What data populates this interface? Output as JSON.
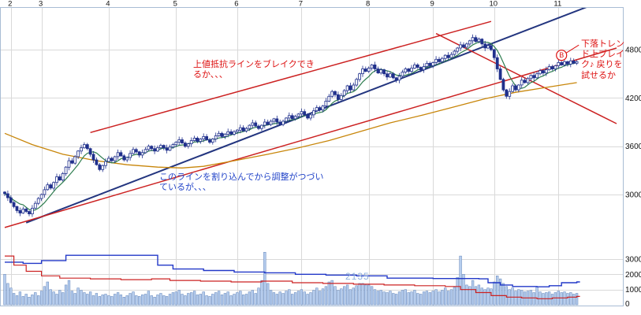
{
  "annotations": {
    "resistance_note": "上値抵抗ラインをブレイクできるか、、、",
    "downtrend_note": "下落トレンド上ブレイク♪ 戻りを試せるか",
    "support_note": "このラインを割り込んでから調整がつづいているが、、、",
    "volume_label": "2135",
    "breakout_marker": "B"
  },
  "colors": {
    "candle": "#20308c",
    "candle_up_fill": "#ffffff",
    "volume_bar_fill": "#b6cdee",
    "volume_bar_stroke": "#5f82b8",
    "grid": "#d9d9d9",
    "border": "#a8bcd4",
    "long_ma": "#c8860a",
    "short_ma": "#2e7d4f",
    "annotation_red": "#dd1111",
    "annotation_blue": "#2143c8",
    "ticker_label": "#8fb0dd",
    "axis_text": "#111111"
  },
  "chart_data": {
    "type": "candlestick",
    "legend": "none",
    "grid": "on",
    "months": [
      {
        "label": "2",
        "day": 2
      },
      {
        "label": "3",
        "day": 12
      },
      {
        "label": "4",
        "day": 34
      },
      {
        "label": "5",
        "day": 56
      },
      {
        "label": "6",
        "day": 76
      },
      {
        "label": "7",
        "day": 97
      },
      {
        "label": "8",
        "day": 119
      },
      {
        "label": "9",
        "day": 140
      },
      {
        "label": "10",
        "day": 160
      },
      {
        "label": "11",
        "day": 181
      }
    ],
    "price_ticks": [
      {
        "value": 4800,
        "label": "4800"
      },
      {
        "value": 4200,
        "label": "4200"
      },
      {
        "value": 3600,
        "label": "3600"
      },
      {
        "value": 3000,
        "label": "3000"
      }
    ],
    "volume_ticks": [
      {
        "value": 300,
        "label": "3000000"
      },
      {
        "value": 200,
        "label": "2000000"
      },
      {
        "value": 100,
        "label": "1000000"
      },
      {
        "value": 0,
        "label": "0"
      }
    ],
    "volume_scale": 10000,
    "closes": [
      3010,
      2960,
      2900,
      2850,
      2800,
      2770,
      2820,
      2790,
      2760,
      2830,
      2890,
      2950,
      3000,
      3060,
      3120,
      3080,
      3150,
      3220,
      3180,
      3260,
      3340,
      3420,
      3390,
      3470,
      3540,
      3580,
      3620,
      3570,
      3500,
      3430,
      3370,
      3310,
      3360,
      3410,
      3450,
      3420,
      3470,
      3520,
      3480,
      3430,
      3460,
      3510,
      3560,
      3530,
      3490,
      3520,
      3560,
      3600,
      3570,
      3540,
      3580,
      3610,
      3580,
      3550,
      3590,
      3620,
      3650,
      3680,
      3640,
      3600,
      3630,
      3670,
      3700,
      3660,
      3690,
      3720,
      3680,
      3650,
      3690,
      3730,
      3760,
      3720,
      3750,
      3780,
      3750,
      3780,
      3800,
      3830,
      3790,
      3820,
      3860,
      3890,
      3850,
      3820,
      3860,
      3900,
      3870,
      3910,
      3940,
      3900,
      3870,
      3910,
      3950,
      3980,
      3940,
      3970,
      4000,
      4030,
      3990,
      3950,
      3990,
      4040,
      4080,
      4050,
      4100,
      4160,
      4220,
      4280,
      4240,
      4180,
      4230,
      4290,
      4350,
      4300,
      4360,
      4430,
      4500,
      4560,
      4530,
      4570,
      4610,
      4560,
      4510,
      4550,
      4500,
      4460,
      4500,
      4450,
      4420,
      4470,
      4520,
      4560,
      4530,
      4570,
      4610,
      4580,
      4550,
      4590,
      4630,
      4600,
      4640,
      4680,
      4650,
      4690,
      4730,
      4700,
      4740,
      4780,
      4820,
      4860,
      4830,
      4870,
      4910,
      4950,
      4900,
      4930,
      4870,
      4820,
      4850,
      4800,
      4700,
      4560,
      4430,
      4300,
      4220,
      4280,
      4350,
      4300,
      4360,
      4420,
      4390,
      4440,
      4480,
      4450,
      4500,
      4540,
      4510,
      4550,
      4590,
      4560,
      4600,
      4640,
      4610,
      4650,
      4620,
      4660,
      4630,
      4650
    ],
    "volumes": [
      200,
      140,
      110,
      75,
      60,
      85,
      55,
      70,
      50,
      65,
      80,
      60,
      90,
      120,
      150,
      100,
      85,
      70,
      95,
      80,
      130,
      160,
      90,
      75,
      110,
      95,
      80,
      70,
      85,
      60,
      75,
      55,
      65,
      70,
      60,
      55,
      70,
      80,
      65,
      50,
      60,
      75,
      85,
      60,
      55,
      65,
      70,
      90,
      60,
      50,
      65,
      75,
      60,
      55,
      70,
      80,
      85,
      95,
      70,
      60,
      75,
      80,
      90,
      65,
      70,
      85,
      60,
      55,
      70,
      80,
      90,
      65,
      75,
      85,
      60,
      70,
      80,
      90,
      65,
      70,
      85,
      95,
      75,
      110,
      160,
      345,
      140,
      95,
      80,
      70,
      85,
      75,
      90,
      100,
      70,
      80,
      90,
      100,
      85,
      70,
      80,
      95,
      110,
      90,
      105,
      120,
      150,
      160,
      120,
      95,
      105,
      120,
      130,
      100,
      110,
      125,
      140,
      140,
      130,
      130,
      120,
      100,
      90,
      95,
      85,
      80,
      90,
      75,
      70,
      85,
      95,
      100,
      80,
      85,
      95,
      75,
      70,
      85,
      90,
      80,
      90,
      100,
      85,
      95,
      110,
      90,
      100,
      115,
      180,
      320,
      200,
      130,
      120,
      160,
      120,
      130,
      110,
      100,
      110,
      105,
      150,
      190,
      170,
      140,
      120,
      100,
      110,
      90,
      100,
      95,
      85,
      90,
      95,
      80,
      120,
      85,
      75,
      80,
      85,
      70,
      80,
      90,
      80,
      85,
      75,
      80,
      70,
      75
    ],
    "overlays": {
      "short_ma_period": 7,
      "long_ma_anchors": [
        [
          0,
          3760
        ],
        [
          9,
          3620
        ],
        [
          19,
          3500
        ],
        [
          30,
          3420
        ],
        [
          40,
          3370
        ],
        [
          50,
          3340
        ],
        [
          58,
          3330
        ],
        [
          65,
          3350
        ],
        [
          75,
          3420
        ],
        [
          86,
          3500
        ],
        [
          96,
          3580
        ],
        [
          106,
          3670
        ],
        [
          116,
          3780
        ],
        [
          126,
          3890
        ],
        [
          137,
          3990
        ],
        [
          147,
          4090
        ],
        [
          157,
          4190
        ],
        [
          167,
          4270
        ],
        [
          177,
          4330
        ],
        [
          187,
          4390
        ]
      ],
      "trend_lines": [
        {
          "name": "primary-uptrend-line",
          "color": "#23357f",
          "width": 2,
          "points": [
            [
              7,
              2650
            ],
            [
              191,
              5340
            ]
          ]
        },
        {
          "name": "upper-resistance-line",
          "color": "#cc2222",
          "width": 1.5,
          "points": [
            [
              28,
              3770
            ],
            [
              159,
              5150
            ]
          ]
        },
        {
          "name": "channel-support-line",
          "color": "#cc2222",
          "width": 1.5,
          "points": [
            [
              0,
              2590
            ],
            [
              200,
              4820
            ]
          ]
        },
        {
          "name": "downtrend-line",
          "color": "#cc2222",
          "width": 1.5,
          "points": [
            [
              141,
              5000
            ],
            [
              200,
              3880
            ]
          ]
        }
      ]
    },
    "volume_lines": [
      {
        "name": "volume-line-blue",
        "color": "#2238c8",
        "width": 1.4,
        "steps": [
          [
            0,
            280
          ],
          [
            6,
            272
          ],
          [
            12,
            290
          ],
          [
            20,
            325
          ],
          [
            45,
            325
          ],
          [
            50,
            260
          ],
          [
            55,
            235
          ],
          [
            65,
            225
          ],
          [
            75,
            215
          ],
          [
            85,
            210
          ],
          [
            95,
            200
          ],
          [
            105,
            195
          ],
          [
            115,
            190
          ],
          [
            125,
            175
          ],
          [
            140,
            172
          ],
          [
            155,
            170
          ],
          [
            158,
            145
          ],
          [
            162,
            130
          ],
          [
            166,
            120
          ],
          [
            174,
            118
          ],
          [
            178,
            125
          ],
          [
            182,
            145
          ],
          [
            187,
            150
          ]
        ]
      },
      {
        "name": "volume-line-red",
        "color": "#cc2222",
        "width": 1.2,
        "steps": [
          [
            0,
            320
          ],
          [
            3,
            260
          ],
          [
            7,
            220
          ],
          [
            12,
            190
          ],
          [
            18,
            175
          ],
          [
            28,
            170
          ],
          [
            38,
            165
          ],
          [
            48,
            170
          ],
          [
            54,
            160
          ],
          [
            64,
            155
          ],
          [
            74,
            150
          ],
          [
            84,
            155
          ],
          [
            94,
            145
          ],
          [
            104,
            140
          ],
          [
            114,
            135
          ],
          [
            124,
            130
          ],
          [
            134,
            125
          ],
          [
            144,
            120
          ],
          [
            149,
            100
          ],
          [
            154,
            80
          ],
          [
            159,
            60
          ],
          [
            164,
            50
          ],
          [
            169,
            45
          ],
          [
            174,
            40
          ],
          [
            179,
            45
          ],
          [
            184,
            50
          ],
          [
            187,
            55
          ]
        ]
      }
    ],
    "marker": {
      "day": 182,
      "price": 4730,
      "label": "B"
    }
  }
}
